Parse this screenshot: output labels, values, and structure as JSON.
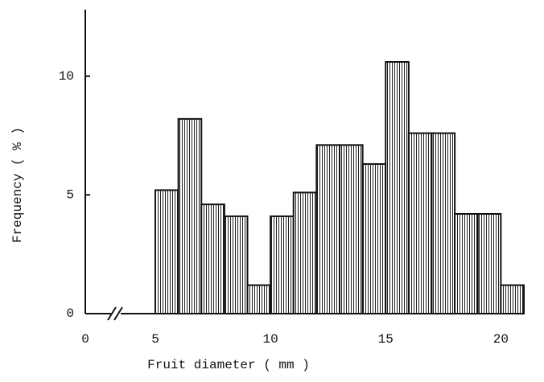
{
  "chart_data": {
    "type": "histogram",
    "x_label": "Fruit diameter  ( mm )",
    "y_label": "Frequency  ( % )",
    "bins": [
      5,
      6,
      7,
      8,
      9,
      10,
      11,
      12,
      13,
      14,
      15,
      16,
      17,
      18,
      19,
      20,
      21
    ],
    "values": [
      5.2,
      8.2,
      4.6,
      4.1,
      1.2,
      4.1,
      5.1,
      7.1,
      7.1,
      6.3,
      10.6,
      7.6,
      7.6,
      4.2,
      4.2,
      1.2
    ],
    "xlim": [
      0,
      22
    ],
    "xticks": [
      0,
      5,
      10,
      15,
      20
    ],
    "x_axis_break": true,
    "ylim": [
      0,
      12.8
    ],
    "yticks": [
      0,
      5,
      10
    ],
    "color": "#111111"
  }
}
